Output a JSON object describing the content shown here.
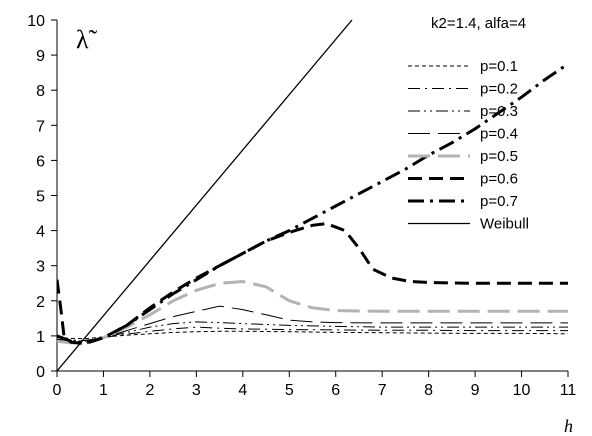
{
  "chart_data": {
    "type": "line",
    "ylabel": "λ̃",
    "xlabel": "h",
    "annotation": "k2=1.4, alfa=4",
    "xlim": [
      0,
      11
    ],
    "ylim": [
      0,
      10
    ],
    "xticks": [
      0,
      1,
      2,
      3,
      4,
      5,
      6,
      7,
      8,
      9,
      10,
      11
    ],
    "yticks": [
      0,
      1,
      2,
      3,
      4,
      5,
      6,
      7,
      8,
      9,
      10
    ],
    "grid": false,
    "legend_position": "right",
    "series": [
      {
        "name": "p=0.1",
        "style": "fine-dash",
        "color": "#000000",
        "width": 1,
        "points": [
          [
            0,
            0.95
          ],
          [
            0.3,
            0.93
          ],
          [
            0.6,
            0.92
          ],
          [
            1,
            0.97
          ],
          [
            1.5,
            1.02
          ],
          [
            2,
            1.06
          ],
          [
            2.5,
            1.1
          ],
          [
            3,
            1.12
          ],
          [
            3.5,
            1.13
          ],
          [
            4,
            1.13
          ],
          [
            5,
            1.12
          ],
          [
            6,
            1.1
          ],
          [
            7,
            1.09
          ],
          [
            8,
            1.08
          ],
          [
            9,
            1.07
          ],
          [
            10,
            1.07
          ],
          [
            11,
            1.06
          ]
        ]
      },
      {
        "name": "p=0.2",
        "style": "dash-dot",
        "color": "#000000",
        "width": 1,
        "points": [
          [
            0,
            0.9
          ],
          [
            0.3,
            0.88
          ],
          [
            0.6,
            0.87
          ],
          [
            1,
            0.95
          ],
          [
            1.5,
            1.05
          ],
          [
            2,
            1.13
          ],
          [
            2.5,
            1.2
          ],
          [
            3,
            1.25
          ],
          [
            3.5,
            1.22
          ],
          [
            4,
            1.2
          ],
          [
            5,
            1.18
          ],
          [
            6,
            1.17
          ],
          [
            7,
            1.16
          ],
          [
            8,
            1.16
          ],
          [
            9,
            1.15
          ],
          [
            10,
            1.15
          ],
          [
            11,
            1.15
          ]
        ]
      },
      {
        "name": "p=0.3",
        "style": "dash-dot-dot",
        "color": "#000000",
        "width": 1,
        "points": [
          [
            0,
            0.88
          ],
          [
            0.3,
            0.86
          ],
          [
            0.6,
            0.85
          ],
          [
            1,
            0.95
          ],
          [
            1.5,
            1.1
          ],
          [
            2,
            1.25
          ],
          [
            2.5,
            1.35
          ],
          [
            3,
            1.4
          ],
          [
            3.5,
            1.38
          ],
          [
            4,
            1.35
          ],
          [
            5,
            1.3
          ],
          [
            6,
            1.27
          ],
          [
            7,
            1.25
          ],
          [
            8,
            1.25
          ],
          [
            9,
            1.25
          ],
          [
            10,
            1.25
          ],
          [
            11,
            1.25
          ]
        ]
      },
      {
        "name": "p=0.4",
        "style": "long-dash",
        "color": "#000000",
        "width": 1,
        "points": [
          [
            0,
            0.85
          ],
          [
            0.3,
            0.82
          ],
          [
            0.6,
            0.8
          ],
          [
            1,
            0.95
          ],
          [
            1.5,
            1.15
          ],
          [
            2,
            1.35
          ],
          [
            2.5,
            1.55
          ],
          [
            3,
            1.7
          ],
          [
            3.5,
            1.85
          ],
          [
            4,
            1.75
          ],
          [
            4.5,
            1.6
          ],
          [
            5,
            1.45
          ],
          [
            5.5,
            1.4
          ],
          [
            6,
            1.38
          ],
          [
            7,
            1.37
          ],
          [
            8,
            1.37
          ],
          [
            9,
            1.37
          ],
          [
            10,
            1.37
          ],
          [
            11,
            1.37
          ]
        ]
      },
      {
        "name": "p=0.5",
        "style": "gray-long-dash",
        "color": "#b3b3b3",
        "width": 3,
        "points": [
          [
            0,
            0.85
          ],
          [
            0.3,
            0.8
          ],
          [
            0.6,
            0.78
          ],
          [
            1,
            0.95
          ],
          [
            1.5,
            1.25
          ],
          [
            2,
            1.6
          ],
          [
            2.5,
            2.0
          ],
          [
            3,
            2.3
          ],
          [
            3.5,
            2.5
          ],
          [
            4,
            2.55
          ],
          [
            4.5,
            2.4
          ],
          [
            5,
            2.0
          ],
          [
            5.5,
            1.8
          ],
          [
            6,
            1.72
          ],
          [
            7,
            1.7
          ],
          [
            8,
            1.7
          ],
          [
            9,
            1.7
          ],
          [
            10,
            1.7
          ],
          [
            11,
            1.7
          ]
        ]
      },
      {
        "name": "p=0.6",
        "style": "heavy-dash",
        "color": "#000000",
        "width": 3,
        "points": [
          [
            0,
            2.6
          ],
          [
            0.08,
            1.8
          ],
          [
            0.15,
            1.0
          ],
          [
            0.3,
            0.82
          ],
          [
            0.6,
            0.78
          ],
          [
            1,
            0.95
          ],
          [
            1.5,
            1.3
          ],
          [
            2,
            1.8
          ],
          [
            2.5,
            2.25
          ],
          [
            3,
            2.65
          ],
          [
            3.5,
            3.0
          ],
          [
            4,
            3.35
          ],
          [
            4.5,
            3.7
          ],
          [
            5,
            3.95
          ],
          [
            5.5,
            4.15
          ],
          [
            5.8,
            4.2
          ],
          [
            6.2,
            4.0
          ],
          [
            6.5,
            3.5
          ],
          [
            6.8,
            2.9
          ],
          [
            7.2,
            2.65
          ],
          [
            7.6,
            2.55
          ],
          [
            8,
            2.52
          ],
          [
            9,
            2.5
          ],
          [
            10,
            2.5
          ],
          [
            11,
            2.5
          ]
        ]
      },
      {
        "name": "p=0.7",
        "style": "heavy-dash-dot",
        "color": "#000000",
        "width": 3,
        "points": [
          [
            0,
            1.0
          ],
          [
            0.3,
            0.85
          ],
          [
            0.6,
            0.8
          ],
          [
            1,
            0.95
          ],
          [
            1.5,
            1.3
          ],
          [
            2,
            1.75
          ],
          [
            2.5,
            2.2
          ],
          [
            3,
            2.6
          ],
          [
            3.5,
            3.0
          ],
          [
            4,
            3.35
          ],
          [
            4.5,
            3.7
          ],
          [
            5,
            4.0
          ],
          [
            5.5,
            4.35
          ],
          [
            6,
            4.7
          ],
          [
            6.5,
            5.05
          ],
          [
            7,
            5.4
          ],
          [
            7.5,
            5.75
          ],
          [
            8,
            6.15
          ],
          [
            8.5,
            6.5
          ],
          [
            9,
            6.9
          ],
          [
            9.5,
            7.35
          ],
          [
            10,
            7.8
          ],
          [
            10.5,
            8.3
          ],
          [
            11,
            8.75
          ]
        ]
      },
      {
        "name": "Weibull",
        "style": "solid",
        "color": "#000000",
        "width": 1.3,
        "points": [
          [
            0,
            0
          ],
          [
            6.35,
            10
          ]
        ]
      }
    ]
  }
}
